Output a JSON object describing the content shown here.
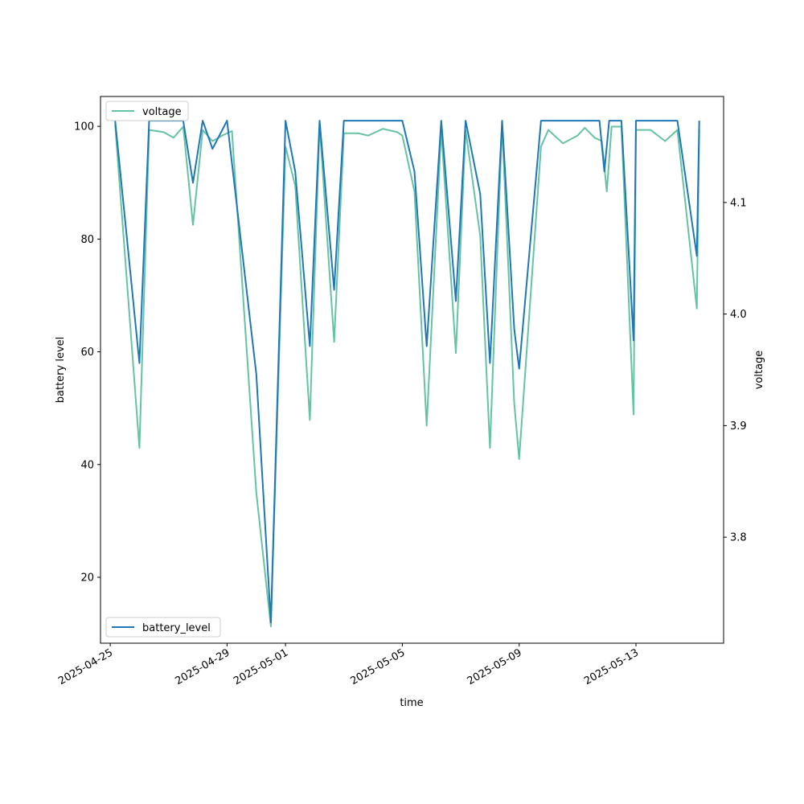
{
  "chart_data": {
    "type": "line",
    "xlabel": "time",
    "ylabel_left": "battery level",
    "ylabel_right": "voltage",
    "x_tick_labels": [
      "2025-04-25",
      "2025-04-29",
      "2025-05-01",
      "2025-05-05",
      "2025-05-09",
      "2025-05-13"
    ],
    "xlim": [
      "2025-04-24T16:00",
      "2025-05-16T00:00"
    ],
    "ylim_left": [
      8.3,
      105.3
    ],
    "ylim_right": [
      3.705,
      4.195
    ],
    "y_left_ticks": [
      20,
      40,
      60,
      80,
      100
    ],
    "y_right_ticks": [
      3.8,
      3.9,
      4.0,
      4.1
    ],
    "grid": false,
    "legends": {
      "voltage": "top-left",
      "battery_level": "bottom-left"
    },
    "series": [
      {
        "name": "battery_level",
        "axis": "left",
        "color": "#1f77b4",
        "points": [
          [
            "2025-04-25T04:00",
            101
          ],
          [
            "2025-04-26T00:00",
            58
          ],
          [
            "2025-04-26T08:00",
            101
          ],
          [
            "2025-04-27T12:00",
            101
          ],
          [
            "2025-04-27T20:00",
            90
          ],
          [
            "2025-04-28T04:00",
            101
          ],
          [
            "2025-04-28T12:00",
            96
          ],
          [
            "2025-04-29T00:00",
            101
          ],
          [
            "2025-04-30T00:00",
            56
          ],
          [
            "2025-04-30T12:00",
            12
          ],
          [
            "2025-05-01T00:00",
            101
          ],
          [
            "2025-05-01T08:00",
            92
          ],
          [
            "2025-05-01T20:00",
            61
          ],
          [
            "2025-05-02T04:00",
            101
          ],
          [
            "2025-05-02T16:00",
            71
          ],
          [
            "2025-05-03T00:00",
            101
          ],
          [
            "2025-05-05T00:00",
            101
          ],
          [
            "2025-05-05T10:00",
            92
          ],
          [
            "2025-05-05T20:00",
            61
          ],
          [
            "2025-05-06T08:00",
            101
          ],
          [
            "2025-05-06T20:00",
            69
          ],
          [
            "2025-05-07T04:00",
            101
          ],
          [
            "2025-05-07T16:00",
            88
          ],
          [
            "2025-05-08T00:00",
            58
          ],
          [
            "2025-05-08T10:00",
            101
          ],
          [
            "2025-05-08T20:00",
            64
          ],
          [
            "2025-05-09T00:00",
            57
          ],
          [
            "2025-05-09T18:00",
            101
          ],
          [
            "2025-05-11T18:00",
            101
          ],
          [
            "2025-05-11T22:00",
            92
          ],
          [
            "2025-05-12T02:00",
            101
          ],
          [
            "2025-05-12T12:00",
            101
          ],
          [
            "2025-05-12T22:00",
            62
          ],
          [
            "2025-05-13T00:00",
            101
          ],
          [
            "2025-05-14T10:00",
            101
          ],
          [
            "2025-05-15T02:00",
            77
          ],
          [
            "2025-05-15T04:00",
            101
          ]
        ]
      },
      {
        "name": "voltage",
        "axis": "right",
        "color": "#66c2a5",
        "points": [
          [
            "2025-04-25T04:00",
            4.17
          ],
          [
            "2025-04-26T00:00",
            3.88
          ],
          [
            "2025-04-26T08:00",
            4.165
          ],
          [
            "2025-04-26T20:00",
            4.163
          ],
          [
            "2025-04-27T04:00",
            4.158
          ],
          [
            "2025-04-27T12:00",
            4.168
          ],
          [
            "2025-04-27T20:00",
            4.08
          ],
          [
            "2025-04-28T04:00",
            4.165
          ],
          [
            "2025-04-28T12:00",
            4.155
          ],
          [
            "2025-04-28T20:00",
            4.16
          ],
          [
            "2025-04-29T04:00",
            4.164
          ],
          [
            "2025-04-30T00:00",
            3.84
          ],
          [
            "2025-04-30T12:00",
            3.72
          ],
          [
            "2025-05-01T00:00",
            4.15
          ],
          [
            "2025-05-01T08:00",
            4.115
          ],
          [
            "2025-05-01T20:00",
            3.905
          ],
          [
            "2025-05-02T04:00",
            4.17
          ],
          [
            "2025-05-02T16:00",
            3.975
          ],
          [
            "2025-05-03T00:00",
            4.162
          ],
          [
            "2025-05-03T12:00",
            4.162
          ],
          [
            "2025-05-03T20:00",
            4.16
          ],
          [
            "2025-05-04T08:00",
            4.166
          ],
          [
            "2025-05-04T20:00",
            4.163
          ],
          [
            "2025-05-05T00:00",
            4.16
          ],
          [
            "2025-05-05T10:00",
            4.11
          ],
          [
            "2025-05-05T20:00",
            3.9
          ],
          [
            "2025-05-06T08:00",
            4.165
          ],
          [
            "2025-05-06T20:00",
            3.965
          ],
          [
            "2025-05-07T04:00",
            4.165
          ],
          [
            "2025-05-07T16:00",
            4.07
          ],
          [
            "2025-05-08T00:00",
            3.88
          ],
          [
            "2025-05-08T10:00",
            4.17
          ],
          [
            "2025-05-08T20:00",
            3.92
          ],
          [
            "2025-05-09T00:00",
            3.87
          ],
          [
            "2025-05-09T18:00",
            4.15
          ],
          [
            "2025-05-10T00:00",
            4.165
          ],
          [
            "2025-05-10T12:00",
            4.153
          ],
          [
            "2025-05-11T00:00",
            4.16
          ],
          [
            "2025-05-11T06:00",
            4.167
          ],
          [
            "2025-05-11T14:00",
            4.158
          ],
          [
            "2025-05-11T20:00",
            4.155
          ],
          [
            "2025-05-12T00:00",
            4.11
          ],
          [
            "2025-05-12T04:00",
            4.168
          ],
          [
            "2025-05-12T12:00",
            4.168
          ],
          [
            "2025-05-12T22:00",
            3.91
          ],
          [
            "2025-05-13T00:00",
            4.165
          ],
          [
            "2025-05-13T12:00",
            4.165
          ],
          [
            "2025-05-14T00:00",
            4.155
          ],
          [
            "2025-05-14T10:00",
            4.165
          ],
          [
            "2025-05-15T02:00",
            4.005
          ],
          [
            "2025-05-15T04:00",
            4.165
          ]
        ]
      }
    ]
  }
}
